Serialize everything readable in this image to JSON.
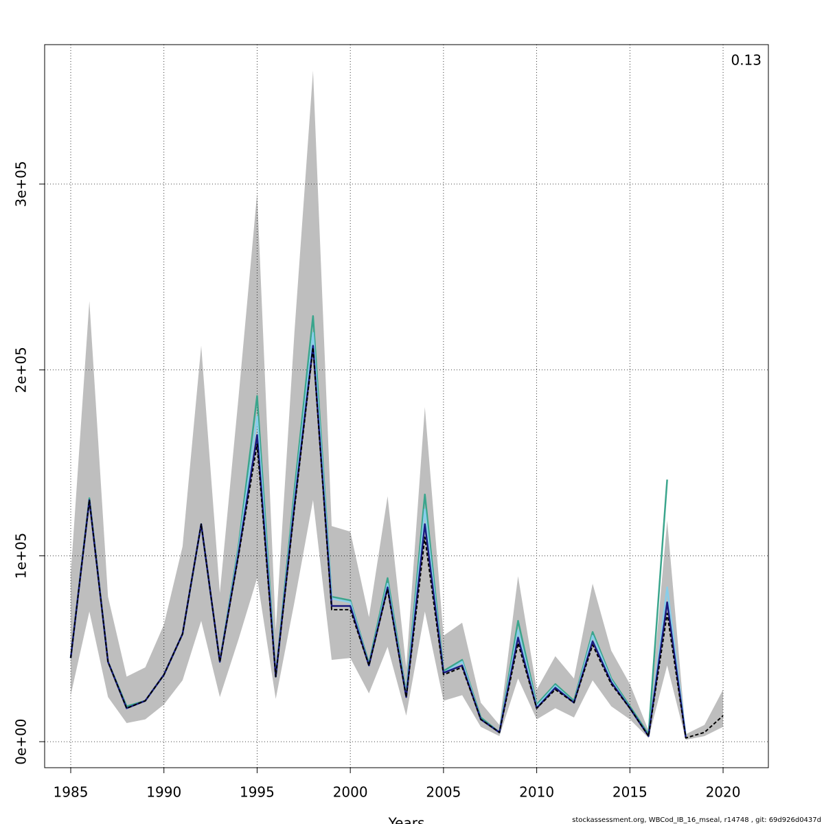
{
  "chart_data": {
    "type": "line",
    "annotation": "0.13",
    "xlabel": "Years",
    "footer": "stockassessment.org, WBCod_IB_16_mseal, r14748 , git: 69d926d0437d",
    "x": [
      1985,
      1986,
      1987,
      1988,
      1989,
      1990,
      1991,
      1992,
      1993,
      1994,
      1995,
      1996,
      1997,
      1998,
      1999,
      2000,
      2001,
      2002,
      2003,
      2004,
      2005,
      2006,
      2007,
      2008,
      2009,
      2010,
      2011,
      2012,
      2013,
      2014,
      2015,
      2016,
      2017,
      2018,
      2019,
      2020
    ],
    "band": {
      "color": "#bebebe",
      "low": [
        25000,
        70000,
        24000,
        10000,
        12000,
        20000,
        33000,
        65000,
        24000,
        55000,
        88000,
        23000,
        75000,
        130000,
        44000,
        45000,
        26000,
        51000,
        14000,
        70000,
        22000,
        25000,
        8000,
        3000,
        34000,
        12000,
        18000,
        13000,
        33000,
        19000,
        12000,
        2000,
        41000,
        1000,
        3000,
        8000
      ],
      "high": [
        90000,
        237000,
        78000,
        35000,
        40000,
        63000,
        105000,
        213000,
        80000,
        185000,
        295000,
        60000,
        220000,
        361000,
        116000,
        113000,
        67000,
        132000,
        40000,
        180000,
        57000,
        64000,
        21000,
        9000,
        89000,
        28000,
        46000,
        34000,
        85000,
        49000,
        31000,
        6000,
        119000,
        4000,
        9000,
        28000
      ]
    },
    "series": [
      {
        "color": "#3aa58c",
        "values": [
          45000,
          131000,
          43000,
          19000,
          22000,
          36000,
          58000,
          117000,
          43000,
          105000,
          186000,
          35000,
          135000,
          229000,
          78000,
          76000,
          42000,
          88000,
          26000,
          133000,
          38000,
          44000,
          13000,
          5000,
          65000,
          20000,
          31000,
          22000,
          59000,
          34000,
          19000,
          4000,
          141000,
          null,
          null,
          null
        ]
      },
      {
        "color": "#87ceeb",
        "values": [
          45000,
          130000,
          43000,
          18000,
          22000,
          36000,
          58000,
          117000,
          43000,
          103000,
          175000,
          35000,
          130000,
          220000,
          77000,
          75000,
          41000,
          85000,
          25000,
          125000,
          37000,
          43000,
          12000,
          5000,
          60000,
          19000,
          30000,
          21000,
          57000,
          33000,
          18000,
          3000,
          83000,
          3000,
          null,
          null
        ]
      },
      {
        "color": "#1a1a80",
        "values": [
          45000,
          130000,
          43000,
          18000,
          22000,
          36000,
          58000,
          117000,
          43000,
          101000,
          165000,
          35000,
          127000,
          213000,
          73000,
          73000,
          41000,
          83000,
          24000,
          117000,
          37000,
          41000,
          12000,
          5000,
          56000,
          18000,
          29000,
          21000,
          54000,
          32000,
          18000,
          3000,
          75000,
          2000,
          null,
          null
        ]
      },
      {
        "color": "#000000",
        "dashed": true,
        "values": [
          45000,
          130000,
          43000,
          18000,
          22000,
          36000,
          58000,
          117000,
          43000,
          100000,
          160000,
          35000,
          125000,
          212000,
          71000,
          71000,
          41000,
          82000,
          24000,
          110000,
          36000,
          40000,
          12000,
          5000,
          53000,
          18000,
          28000,
          21000,
          52000,
          31000,
          18000,
          3000,
          69000,
          2000,
          5000,
          14000
        ]
      }
    ],
    "xlim": [
      1983.6,
      2022.43
    ],
    "ylim": [
      -14000,
      375000
    ],
    "xticks": [
      1985,
      1990,
      1995,
      2000,
      2005,
      2010,
      2015,
      2020
    ],
    "yticks": [
      {
        "value": 0,
        "label": "0e+00"
      },
      {
        "value": 100000,
        "label": "1e+05"
      },
      {
        "value": 200000,
        "label": "2e+05"
      },
      {
        "value": 300000,
        "label": "3e+05"
      }
    ],
    "grid": true
  }
}
